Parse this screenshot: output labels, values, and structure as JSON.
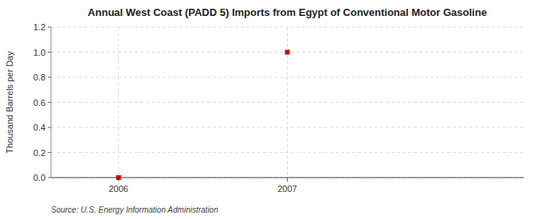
{
  "chart_data": {
    "type": "scatter",
    "title": "Annual West Coast (PADD 5) Imports from Egypt of Conventional Motor Gasoline",
    "y_label": "Thousand Barrels per Day",
    "source": "Source: U.S. Energy Information Administration",
    "x": [
      2006,
      2007
    ],
    "values": [
      0.0,
      1.0
    ],
    "color": "#cc0000",
    "marker": "square",
    "xlim": [
      2005.6,
      2008.4
    ],
    "xticks": [
      2006,
      2007
    ],
    "ylim": [
      0.0,
      1.2
    ],
    "yticks": [
      {
        "value": 0.0,
        "label": "0.0"
      },
      0.2,
      0.4,
      0.6,
      0.8,
      {
        "value": 1.0,
        "label": "1.0"
      },
      1.2
    ],
    "grid": true
  }
}
